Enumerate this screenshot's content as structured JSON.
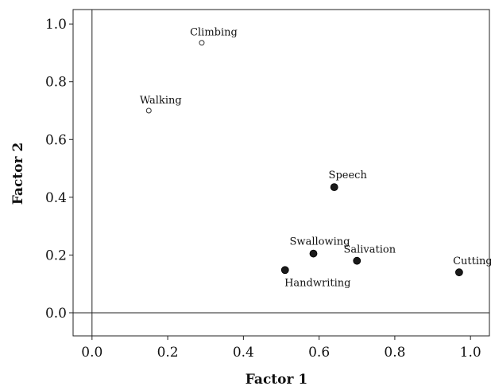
{
  "chart_data": {
    "type": "scatter",
    "title": "",
    "xlabel": "Factor 1",
    "ylabel": "Factor 2",
    "xlim": [
      -0.05,
      1.05
    ],
    "ylim": [
      -0.08,
      1.05
    ],
    "xticks": [
      "0.0",
      "0.2",
      "0.4",
      "0.6",
      "0.8",
      "1.0"
    ],
    "yticks": [
      "0.0",
      "0.2",
      "0.4",
      "0.6",
      "0.8",
      "1.0"
    ],
    "reference_lines": {
      "x": 0,
      "y": 0
    },
    "grid": false,
    "points": [
      {
        "label": "Climbing",
        "x": 0.29,
        "y": 0.935,
        "marker": "open"
      },
      {
        "label": "Walking",
        "x": 0.15,
        "y": 0.7,
        "marker": "open"
      },
      {
        "label": "Speech",
        "x": 0.64,
        "y": 0.435,
        "marker": "filled"
      },
      {
        "label": "Swallowing",
        "x": 0.585,
        "y": 0.205,
        "marker": "filled"
      },
      {
        "label": "Salivation",
        "x": 0.7,
        "y": 0.18,
        "marker": "filled"
      },
      {
        "label": "Handwriting",
        "x": 0.51,
        "y": 0.148,
        "marker": "filled"
      },
      {
        "label": "Cutting",
        "x": 0.97,
        "y": 0.14,
        "marker": "filled"
      }
    ]
  }
}
